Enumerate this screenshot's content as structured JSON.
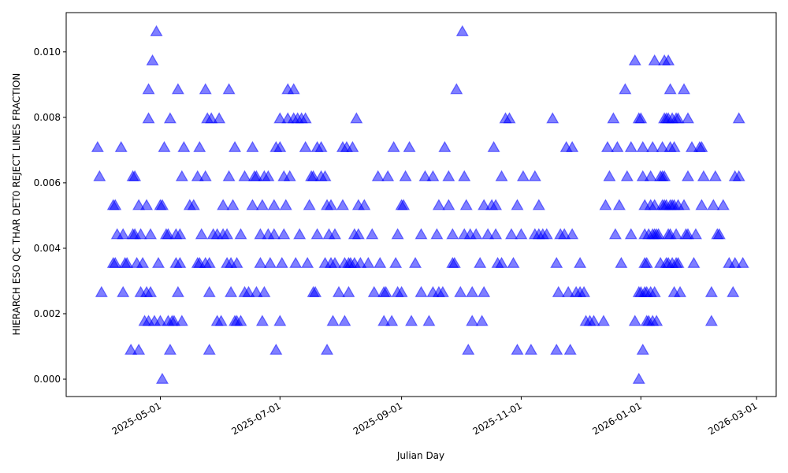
{
  "chart_data": {
    "type": "scatter",
    "xlabel": "Julian Day",
    "ylabel": "HIERARCH ESO QC THAR DET0 REJECT LINES FRACTION",
    "color": "#0000ff",
    "alpha": 0.5,
    "marker": "triangle",
    "xlim": [
      "2025-03-14",
      "2026-03-11"
    ],
    "ylim": [
      -0.00053,
      0.0112
    ],
    "xticks": [
      "2025-05-01",
      "2025-07-01",
      "2025-09-01",
      "2025-11-01",
      "2026-01-01",
      "2026-03-01"
    ],
    "yticks": [
      {
        "value": 0,
        "label": "0.000"
      },
      0.002,
      0.004,
      0.006,
      0.008,
      {
        "value": 0.01,
        "label": "0.010"
      }
    ],
    "x": [
      "2025-03-30",
      "2025-03-31",
      "2025-04-01",
      "2025-04-07",
      "2025-04-07",
      "2025-04-08",
      "2025-04-08",
      "2025-04-09",
      "2025-04-11",
      "2025-04-12",
      "2025-04-12",
      "2025-04-13",
      "2025-04-14",
      "2025-04-16",
      "2025-04-17",
      "2025-04-17",
      "2025-04-18",
      "2025-04-18",
      "2025-04-19",
      "2025-04-20",
      "2025-04-20",
      "2025-04-21",
      "2025-04-21",
      "2025-04-22",
      "2025-04-23",
      "2025-04-24",
      "2025-04-24",
      "2025-04-25",
      "2025-04-25",
      "2025-04-25",
      "2025-04-26",
      "2025-04-26",
      "2025-04-27",
      "2025-04-28",
      "2025-04-29",
      "2025-04-30",
      "2025-05-01",
      "2025-05-01",
      "2025-05-02",
      "2025-05-02",
      "2025-05-03",
      "2025-05-04",
      "2025-05-05",
      "2025-05-05",
      "2025-05-06",
      "2025-05-06",
      "2025-05-07",
      "2025-05-08",
      "2025-05-09",
      "2025-05-09",
      "2025-05-10",
      "2025-05-10",
      "2025-05-11",
      "2025-05-11",
      "2025-05-12",
      "2025-05-12",
      "2025-05-13",
      "2025-05-16",
      "2025-05-18",
      "2025-05-20",
      "2025-05-20",
      "2025-05-21",
      "2025-05-21",
      "2025-05-22",
      "2025-05-24",
      "2025-05-24",
      "2025-05-24",
      "2025-05-25",
      "2025-05-26",
      "2025-05-26",
      "2025-05-26",
      "2025-05-27",
      "2025-05-28",
      "2025-05-30",
      "2025-05-30",
      "2025-05-31",
      "2025-06-01",
      "2025-06-02",
      "2025-06-02",
      "2025-06-04",
      "2025-06-04",
      "2025-06-05",
      "2025-06-05",
      "2025-06-06",
      "2025-06-06",
      "2025-06-07",
      "2025-06-08",
      "2025-06-08",
      "2025-06-09",
      "2025-06-09",
      "2025-06-11",
      "2025-06-11",
      "2025-06-13",
      "2025-06-13",
      "2025-06-15",
      "2025-06-17",
      "2025-06-17",
      "2025-06-18",
      "2025-06-19",
      "2025-06-19",
      "2025-06-21",
      "2025-06-21",
      "2025-06-22",
      "2025-06-22",
      "2025-06-23",
      "2025-06-23",
      "2025-06-25",
      "2025-06-25",
      "2025-06-26",
      "2025-06-28",
      "2025-06-28",
      "2025-06-29",
      "2025-06-29",
      "2025-07-01",
      "2025-07-01",
      "2025-07-01",
      "2025-07-02",
      "2025-07-03",
      "2025-07-03",
      "2025-07-04",
      "2025-07-05",
      "2025-07-05",
      "2025-07-06",
      "2025-07-08",
      "2025-07-08",
      "2025-07-09",
      "2025-07-10",
      "2025-07-11",
      "2025-07-12",
      "2025-07-14",
      "2025-07-14",
      "2025-07-15",
      "2025-07-16",
      "2025-07-17",
      "2025-07-18",
      "2025-07-18",
      "2025-07-19",
      "2025-07-20",
      "2025-07-20",
      "2025-07-22",
      "2025-07-22",
      "2025-07-24",
      "2025-07-24",
      "2025-07-25",
      "2025-07-25",
      "2025-07-26",
      "2025-07-27",
      "2025-07-27",
      "2025-07-28",
      "2025-07-29",
      "2025-07-29",
      "2025-07-31",
      "2025-08-02",
      "2025-08-02",
      "2025-08-03",
      "2025-08-03",
      "2025-08-04",
      "2025-08-05",
      "2025-08-05",
      "2025-08-06",
      "2025-08-07",
      "2025-08-08",
      "2025-08-08",
      "2025-08-09",
      "2025-08-10",
      "2025-08-10",
      "2025-08-11",
      "2025-08-13",
      "2025-08-15",
      "2025-08-17",
      "2025-08-18",
      "2025-08-20",
      "2025-08-21",
      "2025-08-23",
      "2025-08-23",
      "2025-08-24",
      "2025-08-25",
      "2025-08-27",
      "2025-08-28",
      "2025-08-29",
      "2025-08-30",
      "2025-08-30",
      "2025-09-01",
      "2025-09-01",
      "2025-09-02",
      "2025-09-03",
      "2025-09-05",
      "2025-09-06",
      "2025-09-08",
      "2025-09-11",
      "2025-09-11",
      "2025-09-13",
      "2025-09-15",
      "2025-09-17",
      "2025-09-17",
      "2025-09-19",
      "2025-09-20",
      "2025-09-20",
      "2025-09-22",
      "2025-09-23",
      "2025-09-25",
      "2025-09-25",
      "2025-09-27",
      "2025-09-27",
      "2025-09-28",
      "2025-09-29",
      "2025-10-01",
      "2025-10-02",
      "2025-10-03",
      "2025-10-03",
      "2025-10-04",
      "2025-10-05",
      "2025-10-06",
      "2025-10-07",
      "2025-10-07",
      "2025-10-09",
      "2025-10-11",
      "2025-10-12",
      "2025-10-13",
      "2025-10-13",
      "2025-10-15",
      "2025-10-17",
      "2025-10-18",
      "2025-10-19",
      "2025-10-19",
      "2025-10-20",
      "2025-10-22",
      "2025-10-22",
      "2025-10-24",
      "2025-10-26",
      "2025-10-27",
      "2025-10-28",
      "2025-10-30",
      "2025-10-30",
      "2025-11-01",
      "2025-11-02",
      "2025-11-06",
      "2025-11-08",
      "2025-11-08",
      "2025-11-10",
      "2025-11-10",
      "2025-11-12",
      "2025-11-14",
      "2025-11-17",
      "2025-11-19",
      "2025-11-19",
      "2025-11-20",
      "2025-11-21",
      "2025-11-23",
      "2025-11-24",
      "2025-11-25",
      "2025-11-26",
      "2025-11-27",
      "2025-11-27",
      "2025-11-29",
      "2025-12-01",
      "2025-12-01",
      "2025-12-03",
      "2025-12-04",
      "2025-12-06",
      "2025-12-08",
      "2025-12-13",
      "2025-12-14",
      "2025-12-15",
      "2025-12-16",
      "2025-12-18",
      "2025-12-19",
      "2025-12-20",
      "2025-12-21",
      "2025-12-22",
      "2025-12-24",
      "2025-12-25",
      "2025-12-27",
      "2025-12-27",
      "2025-12-29",
      "2025-12-29",
      "2025-12-31",
      "2025-12-31",
      "2025-12-31",
      "2026-01-01",
      "2026-01-01",
      "2026-01-02",
      "2026-01-02",
      "2026-01-02",
      "2026-01-03",
      "2026-01-03",
      "2026-01-03",
      "2026-01-03",
      "2026-01-04",
      "2026-01-04",
      "2026-01-04",
      "2026-01-05",
      "2026-01-05",
      "2026-01-06",
      "2026-01-06",
      "2026-01-06",
      "2026-01-07",
      "2026-01-07",
      "2026-01-07",
      "2026-01-08",
      "2026-01-08",
      "2026-01-08",
      "2026-01-08",
      "2026-01-09",
      "2026-01-09",
      "2026-01-10",
      "2026-01-11",
      "2026-01-11",
      "2026-01-12",
      "2026-01-12",
      "2026-01-12",
      "2026-01-13",
      "2026-01-13",
      "2026-01-13",
      "2026-01-13",
      "2026-01-14",
      "2026-01-14",
      "2026-01-14",
      "2026-01-15",
      "2026-01-15",
      "2026-01-15",
      "2026-01-15",
      "2026-01-16",
      "2026-01-16",
      "2026-01-16",
      "2026-01-16",
      "2026-01-17",
      "2026-01-17",
      "2026-01-17",
      "2026-01-18",
      "2026-01-18",
      "2026-01-18",
      "2026-01-19",
      "2026-01-19",
      "2026-01-19",
      "2026-01-20",
      "2026-01-20",
      "2026-01-20",
      "2026-01-21",
      "2026-01-23",
      "2026-01-23",
      "2026-01-24",
      "2026-01-25",
      "2026-01-25",
      "2026-01-25",
      "2026-01-27",
      "2026-01-28",
      "2026-01-29",
      "2026-01-31",
      "2026-02-01",
      "2026-02-01",
      "2026-02-02",
      "2026-02-06",
      "2026-02-06",
      "2026-02-07",
      "2026-02-08",
      "2026-02-09",
      "2026-02-10",
      "2026-02-12",
      "2026-02-15",
      "2026-02-17",
      "2026-02-18",
      "2026-02-18",
      "2026-02-20",
      "2026-02-20",
      "2026-02-22"
    ],
    "values": [
      0.00708,
      0.00619,
      0.00265,
      0.00531,
      0.00354,
      0.00531,
      0.00354,
      0.00442,
      0.00708,
      0.00442,
      0.00265,
      0.00354,
      0.00354,
      0.00089,
      0.00619,
      0.00442,
      0.00619,
      0.00442,
      0.00354,
      0.00089,
      0.00531,
      0.00265,
      0.00442,
      0.00354,
      0.00177,
      0.00265,
      0.00531,
      0.00885,
      0.00177,
      0.00796,
      0.00442,
      0.00265,
      0.00973,
      0.00177,
      0.01062,
      0.00354,
      0.00177,
      0.00531,
      0,
      0.00531,
      0.00708,
      0.00442,
      0.00442,
      0.00177,
      0.00796,
      0.00089,
      0.00177,
      0.00177,
      0.00354,
      0.00442,
      0.00885,
      0.00265,
      0.00442,
      0.00354,
      0.00177,
      0.00619,
      0.00708,
      0.00531,
      0.00531,
      0.00354,
      0.00619,
      0.00708,
      0.00354,
      0.00442,
      0.00885,
      0.00354,
      0.00619,
      0.00796,
      0.00089,
      0.00265,
      0.00354,
      0.00796,
      0.00442,
      0.00177,
      0.00442,
      0.00796,
      0.00177,
      0.00531,
      0.00442,
      0.00354,
      0.00442,
      0.00885,
      0.00619,
      0.00265,
      0.00354,
      0.00531,
      0.00708,
      0.00177,
      0.00354,
      0.00177,
      0.00442,
      0.00177,
      0.00265,
      0.00619,
      0.00265,
      0.00531,
      0.00708,
      0.00619,
      0.00265,
      0.00619,
      0.00442,
      0.00354,
      0.00531,
      0.00177,
      0.00619,
      0.00265,
      0.00619,
      0.00442,
      0.00354,
      0.00442,
      0.00531,
      0.00089,
      0.00708,
      0.00796,
      0.00708,
      0.00177,
      0.00354,
      0.00619,
      0.00442,
      0.00531,
      0.00885,
      0.00796,
      0.00619,
      0.00885,
      0.00796,
      0.00354,
      0.00796,
      0.00442,
      0.00796,
      0.00796,
      0.00708,
      0.00354,
      0.00531,
      0.00619,
      0.00265,
      0.00619,
      0.00265,
      0.00708,
      0.00442,
      0.00708,
      0.00619,
      0.00619,
      0.00354,
      0.00089,
      0.00531,
      0.00442,
      0.00531,
      0.00354,
      0.00177,
      0.00442,
      0.00354,
      0.00265,
      0.00531,
      0.00708,
      0.00177,
      0.00354,
      0.00708,
      0.00265,
      0.00354,
      0.00354,
      0.00708,
      0.00442,
      0.00354,
      0.00796,
      0.00442,
      0.00531,
      0.00354,
      0.00531,
      0.00354,
      0.00442,
      0.00265,
      0.00619,
      0.00354,
      0.00177,
      0.00265,
      0.00265,
      0.00619,
      0.00177,
      0.00708,
      0.00354,
      0.00265,
      0.00442,
      0.00265,
      0.00531,
      0.00531,
      0.00619,
      0.00708,
      0.00177,
      0.00354,
      0.00265,
      0.00442,
      0.00619,
      0.00177,
      0.00619,
      0.00265,
      0.00442,
      0.00531,
      0.00265,
      0.00265,
      0.00708,
      0.00531,
      0.00619,
      0.00354,
      0.00442,
      0.00354,
      0.00885,
      0.00265,
      0.01062,
      0.00442,
      0.00619,
      0.00531,
      0.00089,
      0.00442,
      0.00177,
      0.00265,
      0.00442,
      0.00354,
      0.00177,
      0.00265,
      0.00531,
      0.00442,
      0.00531,
      0.00708,
      0.00442,
      0.00531,
      0.00354,
      0.00619,
      0.00354,
      0.00796,
      0.00796,
      0.00442,
      0.00354,
      0.00531,
      0.00089,
      0.00442,
      0.00619,
      0.00089,
      0.00619,
      0.00442,
      0.00531,
      0.00442,
      0.00442,
      0.00442,
      0.00796,
      0.00354,
      0.00089,
      0.00265,
      0.00442,
      0.00442,
      0.00708,
      0.00265,
      0.00089,
      0.00708,
      0.00442,
      0.00265,
      0.00265,
      0.00354,
      0.00265,
      0.00177,
      0.00177,
      0.00177,
      0.00177,
      0.00531,
      0.00708,
      0.00619,
      0.00796,
      0.00442,
      0.00708,
      0.00531,
      0.00354,
      0.00885,
      0.00619,
      0.00708,
      0.00442,
      0.00973,
      0.00177,
      0.00796,
      0,
      0.00265,
      0.00796,
      0.00265,
      0.00089,
      0.00708,
      0.00619,
      0.00354,
      0.00531,
      0.00442,
      0.00265,
      0.00354,
      0.00177,
      0.00265,
      0.00442,
      0.00177,
      0.00619,
      0.00531,
      0.00265,
      0.00177,
      0.00442,
      0.00708,
      0.00973,
      0.00531,
      0.00442,
      0.00265,
      0.00177,
      0.00442,
      0.00442,
      0.00619,
      0.00354,
      0.00619,
      0.00708,
      0.00531,
      0.00796,
      0.00973,
      0.00531,
      0.00619,
      0.00796,
      0.00531,
      0.00354,
      0.00973,
      0.00796,
      0.00442,
      0.00354,
      0.00885,
      0.00708,
      0.00531,
      0.00442,
      0.00796,
      0.00531,
      0.00354,
      0.00708,
      0.00265,
      0.00531,
      0.00796,
      0.00442,
      0.00354,
      0.00796,
      0.00531,
      0.00354,
      0.00265,
      0.00885,
      0.00531,
      0.00442,
      0.00619,
      0.00796,
      0.00442,
      0.00708,
      0.00354,
      0.00442,
      0.00708,
      0.00708,
      0.00531,
      0.00619,
      0.00177,
      0.00265,
      0.00531,
      0.00619,
      0.00442,
      0.00442,
      0.00531,
      0.00354,
      0.00265,
      0.00619,
      0.00354,
      0.00796,
      0.00619,
      0.00354
    ]
  }
}
